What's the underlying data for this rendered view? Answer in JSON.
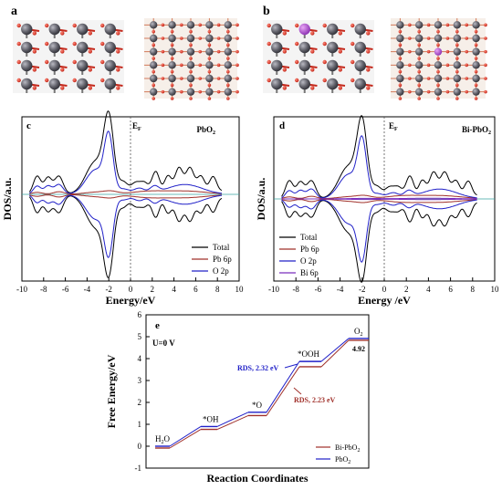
{
  "panels": {
    "a": {
      "letter": "a"
    },
    "b": {
      "letter": "b"
    },
    "c": {
      "letter": "c",
      "material": "PbO",
      "material_sub": "2"
    },
    "d": {
      "letter": "d",
      "material": "Bi-PbO",
      "material_sub": "2"
    },
    "e": {
      "letter": "e",
      "condition": "U=0 V"
    }
  },
  "chart_data": [
    {
      "panel": "c",
      "type": "line",
      "ylabel": "DOS/a.u.",
      "xlabel": "Energy/eV",
      "fermi_label": "E",
      "fermi_sub": "F",
      "xlim": [
        -10,
        10
      ],
      "xticks": [
        -10,
        -8,
        -6,
        -4,
        -2,
        0,
        2,
        4,
        6,
        8,
        10
      ],
      "legend_position": "bottom-right",
      "series": [
        {
          "name": "Total",
          "color": "#000000"
        },
        {
          "name": "Pb 6p",
          "color": "#a0302a"
        },
        {
          "name": "O 2p",
          "color": "#2020c8"
        }
      ]
    },
    {
      "panel": "d",
      "type": "line",
      "ylabel": "DOS/a.u.",
      "xlabel": "Energy /eV",
      "fermi_label": "E",
      "fermi_sub": "F",
      "xlim": [
        -10,
        10
      ],
      "xticks": [
        -10,
        -8,
        -6,
        -4,
        -2,
        0,
        2,
        4,
        6,
        8,
        10
      ],
      "legend_position": "bottom-left",
      "series": [
        {
          "name": "Total",
          "color": "#000000"
        },
        {
          "name": "Pb 6p",
          "color": "#a0302a"
        },
        {
          "name": "O 2p",
          "color": "#2020c8"
        },
        {
          "name": "Bi 6p",
          "color": "#7b2fbe"
        }
      ]
    },
    {
      "panel": "e",
      "type": "line",
      "xlabel": "Reaction Coordinates",
      "ylabel": "Free Energy/eV",
      "ylim": [
        -1,
        6
      ],
      "yticks": [
        -1,
        0,
        1,
        2,
        3,
        4,
        5,
        6
      ],
      "legend_position": "bottom-right",
      "steps": [
        "H2O",
        "*OH",
        "*O",
        "*OOH",
        "O2"
      ],
      "step_labels": [
        {
          "main": "H",
          "sub": "2",
          "rest": "O"
        },
        {
          "main": "*OH",
          "sub": "",
          "rest": ""
        },
        {
          "main": "*O",
          "sub": "",
          "rest": ""
        },
        {
          "main": "*OOH",
          "sub": "",
          "rest": ""
        },
        {
          "main": "O",
          "sub": "2",
          "rest": ""
        }
      ],
      "series": [
        {
          "name": "Bi-PbO2",
          "color": "#a0302a",
          "values": [
            0,
            0.85,
            1.48,
            3.71,
            4.92
          ]
        },
        {
          "name": "PbO2",
          "color": "#2020c8",
          "values": [
            0,
            0.9,
            1.55,
            3.87,
            4.92
          ]
        }
      ],
      "legend_labels": [
        {
          "main": "Bi-PbO",
          "sub": "2"
        },
        {
          "main": "PbO",
          "sub": "2"
        }
      ],
      "annotations": [
        {
          "text": "RDS, 2.32 eV",
          "color": "#2020c8"
        },
        {
          "text": "RDS, 2.23 eV",
          "color": "#a0302a"
        },
        {
          "text": "4.92",
          "color": "#000000"
        }
      ]
    }
  ]
}
